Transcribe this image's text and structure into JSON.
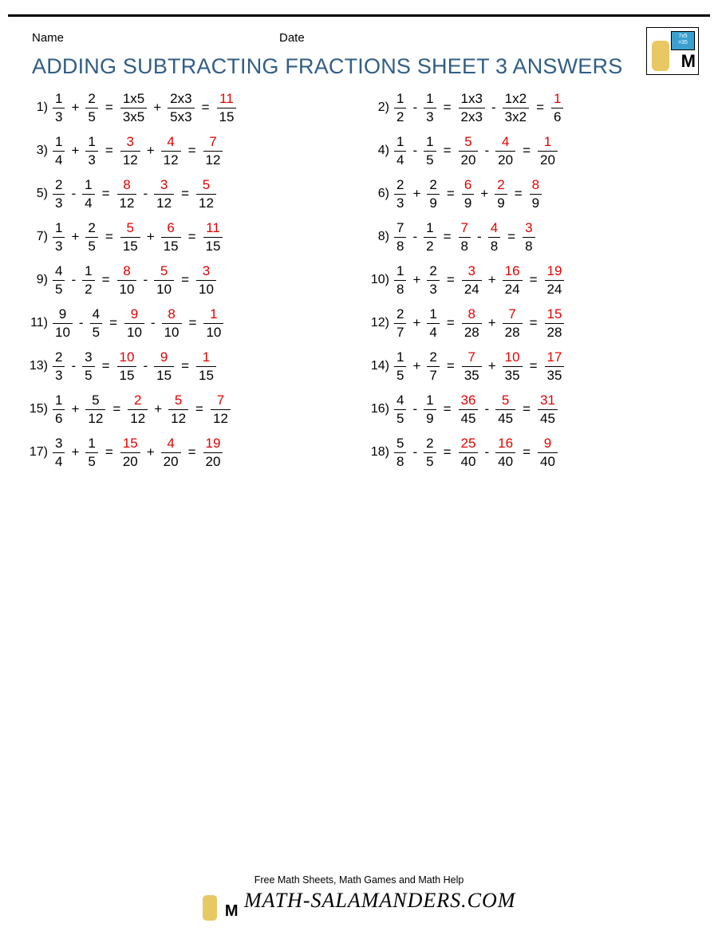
{
  "header": {
    "name_label": "Name",
    "date_label": "Date"
  },
  "title": "ADDING SUBTRACTING FRACTIONS SHEET 3 ANSWERS",
  "logo": {
    "board_text": "7x5\n=35"
  },
  "colors": {
    "title": "#315e85",
    "answer_red": "#e50000",
    "text": "#000000",
    "background": "#ffffff",
    "board_bg": "#3aa0d0"
  },
  "typography": {
    "title_fontsize": 27,
    "body_fontsize": 17,
    "label_fontsize": 15
  },
  "footer": {
    "tagline": "Free Math Sheets, Math Games and Math Help",
    "site": "MATH-SALAMANDERS.COM"
  },
  "problems": [
    {
      "n": "1)",
      "a": {
        "num": "1",
        "den": "3"
      },
      "op1": "+",
      "b": {
        "num": "2",
        "den": "5"
      },
      "c": {
        "num": "1x5",
        "den": "3x5",
        "red": false
      },
      "op2": "+",
      "d": {
        "num": "2x3",
        "den": "5x3",
        "red": false
      },
      "ans": {
        "num": "11",
        "den": "15"
      }
    },
    {
      "n": "2)",
      "a": {
        "num": "1",
        "den": "2"
      },
      "op1": "-",
      "b": {
        "num": "1",
        "den": "3"
      },
      "c": {
        "num": "1x3",
        "den": "2x3",
        "red": false
      },
      "op2": "-",
      "d": {
        "num": "1x2",
        "den": "3x2",
        "red": false
      },
      "ans": {
        "num": "1",
        "den": "6"
      }
    },
    {
      "n": "3)",
      "a": {
        "num": "1",
        "den": "4"
      },
      "op1": "+",
      "b": {
        "num": "1",
        "den": "3"
      },
      "c": {
        "num": "3",
        "den": "12",
        "red": true
      },
      "op2": "+",
      "d": {
        "num": "4",
        "den": "12",
        "red": true
      },
      "ans": {
        "num": "7",
        "den": "12"
      }
    },
    {
      "n": "4)",
      "a": {
        "num": "1",
        "den": "4"
      },
      "op1": "-",
      "b": {
        "num": "1",
        "den": "5"
      },
      "c": {
        "num": "5",
        "den": "20",
        "red": true
      },
      "op2": "-",
      "d": {
        "num": "4",
        "den": "20",
        "red": true
      },
      "ans": {
        "num": "1",
        "den": "20"
      }
    },
    {
      "n": "5)",
      "a": {
        "num": "2",
        "den": "3"
      },
      "op1": "-",
      "b": {
        "num": "1",
        "den": "4"
      },
      "c": {
        "num": "8",
        "den": "12",
        "red": true
      },
      "op2": "-",
      "d": {
        "num": "3",
        "den": "12",
        "red": true
      },
      "ans": {
        "num": "5",
        "den": "12"
      }
    },
    {
      "n": "6)",
      "a": {
        "num": "2",
        "den": "3"
      },
      "op1": "+",
      "b": {
        "num": "2",
        "den": "9"
      },
      "c": {
        "num": "6",
        "den": "9",
        "red": true
      },
      "op2": "+",
      "d": {
        "num": "2",
        "den": "9",
        "red": true
      },
      "ans": {
        "num": "8",
        "den": "9"
      }
    },
    {
      "n": "7)",
      "a": {
        "num": "1",
        "den": "3"
      },
      "op1": "+",
      "b": {
        "num": "2",
        "den": "5"
      },
      "c": {
        "num": "5",
        "den": "15",
        "red": true
      },
      "op2": "+",
      "d": {
        "num": "6",
        "den": "15",
        "red": true
      },
      "ans": {
        "num": "11",
        "den": "15"
      }
    },
    {
      "n": "8)",
      "a": {
        "num": "7",
        "den": "8"
      },
      "op1": "-",
      "b": {
        "num": "1",
        "den": "2"
      },
      "c": {
        "num": "7",
        "den": "8",
        "red": true
      },
      "op2": "-",
      "d": {
        "num": "4",
        "den": "8",
        "red": true
      },
      "ans": {
        "num": "3",
        "den": "8"
      }
    },
    {
      "n": "9)",
      "a": {
        "num": "4",
        "den": "5"
      },
      "op1": "-",
      "b": {
        "num": "1",
        "den": "2"
      },
      "c": {
        "num": "8",
        "den": "10",
        "red": true
      },
      "op2": "-",
      "d": {
        "num": "5",
        "den": "10",
        "red": true
      },
      "ans": {
        "num": "3",
        "den": "10"
      }
    },
    {
      "n": "10)",
      "a": {
        "num": "1",
        "den": "8"
      },
      "op1": "+",
      "b": {
        "num": "2",
        "den": "3"
      },
      "c": {
        "num": "3",
        "den": "24",
        "red": true
      },
      "op2": "+",
      "d": {
        "num": "16",
        "den": "24",
        "red": true
      },
      "ans": {
        "num": "19",
        "den": "24"
      }
    },
    {
      "n": "11)",
      "a": {
        "num": "9",
        "den": "10"
      },
      "op1": "-",
      "b": {
        "num": "4",
        "den": "5"
      },
      "c": {
        "num": "9",
        "den": "10",
        "red": true
      },
      "op2": "-",
      "d": {
        "num": "8",
        "den": "10",
        "red": true
      },
      "ans": {
        "num": "1",
        "den": "10"
      }
    },
    {
      "n": "12)",
      "a": {
        "num": "2",
        "den": "7"
      },
      "op1": "+",
      "b": {
        "num": "1",
        "den": "4"
      },
      "c": {
        "num": "8",
        "den": "28",
        "red": true
      },
      "op2": "+",
      "d": {
        "num": "7",
        "den": "28",
        "red": true
      },
      "ans": {
        "num": "15",
        "den": "28"
      }
    },
    {
      "n": "13)",
      "a": {
        "num": "2",
        "den": "3"
      },
      "op1": "-",
      "b": {
        "num": "3",
        "den": "5"
      },
      "c": {
        "num": "10",
        "den": "15",
        "red": true
      },
      "op2": "-",
      "d": {
        "num": "9",
        "den": "15",
        "red": true
      },
      "ans": {
        "num": "1",
        "den": "15"
      }
    },
    {
      "n": "14)",
      "a": {
        "num": "1",
        "den": "5"
      },
      "op1": "+",
      "b": {
        "num": "2",
        "den": "7"
      },
      "c": {
        "num": "7",
        "den": "35",
        "red": true
      },
      "op2": "+",
      "d": {
        "num": "10",
        "den": "35",
        "red": true
      },
      "ans": {
        "num": "17",
        "den": "35"
      }
    },
    {
      "n": "15)",
      "a": {
        "num": "1",
        "den": "6"
      },
      "op1": "+",
      "b": {
        "num": "5",
        "den": "12"
      },
      "c": {
        "num": "2",
        "den": "12",
        "red": true
      },
      "op2": "+",
      "d": {
        "num": "5",
        "den": "12",
        "red": true
      },
      "ans": {
        "num": "7",
        "den": "12"
      }
    },
    {
      "n": "16)",
      "a": {
        "num": "4",
        "den": "5"
      },
      "op1": "-",
      "b": {
        "num": "1",
        "den": "9"
      },
      "c": {
        "num": "36",
        "den": "45",
        "red": true
      },
      "op2": "-",
      "d": {
        "num": "5",
        "den": "45",
        "red": true
      },
      "ans": {
        "num": "31",
        "den": "45"
      }
    },
    {
      "n": "17)",
      "a": {
        "num": "3",
        "den": "4"
      },
      "op1": "+",
      "b": {
        "num": "1",
        "den": "5"
      },
      "c": {
        "num": "15",
        "den": "20",
        "red": true
      },
      "op2": "+",
      "d": {
        "num": "4",
        "den": "20",
        "red": true
      },
      "ans": {
        "num": "19",
        "den": "20"
      }
    },
    {
      "n": "18)",
      "a": {
        "num": "5",
        "den": "8"
      },
      "op1": "-",
      "b": {
        "num": "2",
        "den": "5"
      },
      "c": {
        "num": "25",
        "den": "40",
        "red": true
      },
      "op2": "-",
      "d": {
        "num": "16",
        "den": "40",
        "red": true
      },
      "ans": {
        "num": "9",
        "den": "40"
      }
    }
  ]
}
